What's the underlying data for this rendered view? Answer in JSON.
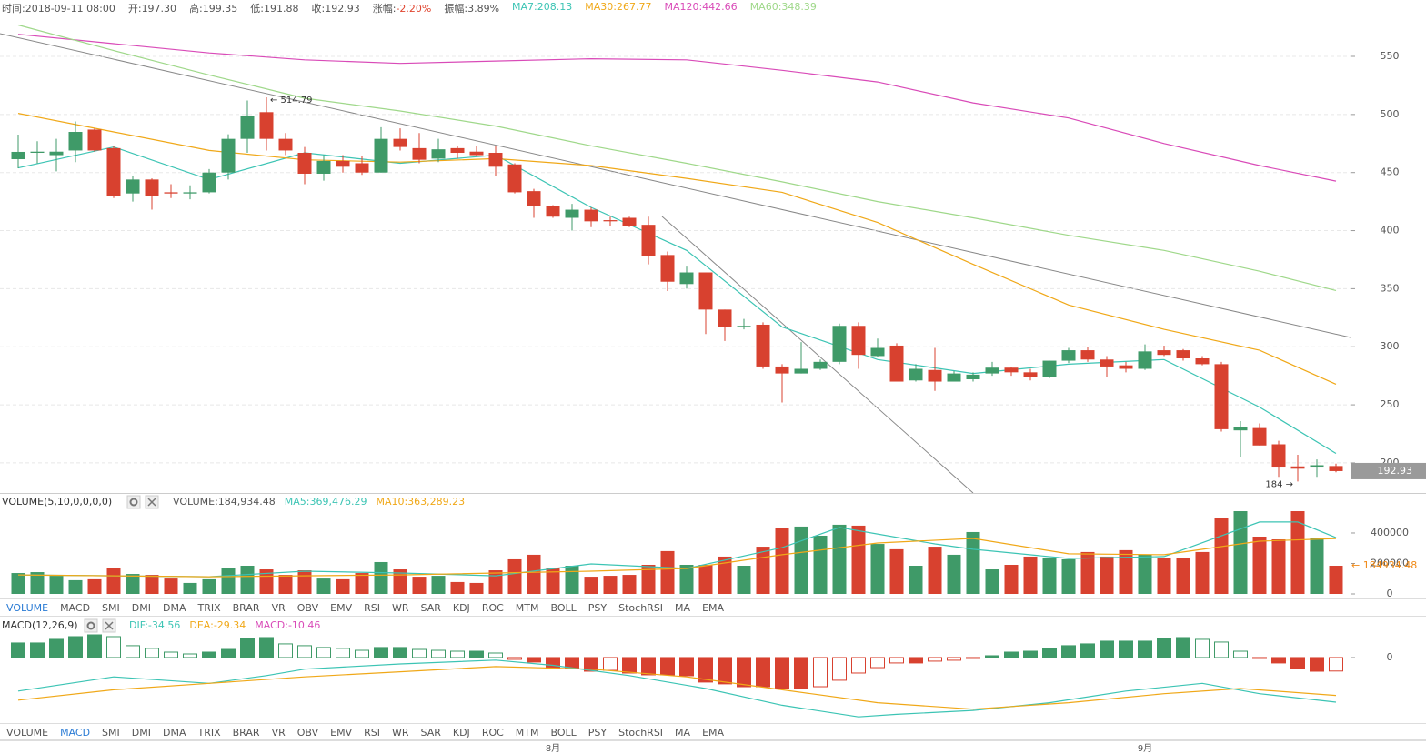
{
  "header": {
    "items": [
      {
        "label": "时间:",
        "value": "2018-09-11 08:00",
        "color": "#555555"
      },
      {
        "label": "开:",
        "value": "197.30",
        "color": "#555555"
      },
      {
        "label": "高:",
        "value": "199.35",
        "color": "#555555"
      },
      {
        "label": "低:",
        "value": "191.88",
        "color": "#555555"
      },
      {
        "label": "收:",
        "value": "192.93",
        "color": "#555555"
      },
      {
        "label": "涨幅:",
        "value": "-2.20%",
        "color": "#e0452f"
      },
      {
        "label": "振幅:",
        "value": "3.89%",
        "color": "#555555"
      }
    ]
  },
  "tabs": [
    {
      "items": [
        "VOLUME",
        "MACD",
        "SMI",
        "DMI",
        "DMA",
        "TRIX",
        "BRAR",
        "VR",
        "OBV",
        "EMV",
        "RSI",
        "WR",
        "SAR",
        "KDJ",
        "ROC",
        "MTM",
        "BOLL",
        "PSY",
        "StochRSI",
        "MA",
        "EMA"
      ],
      "active": 0
    },
    {
      "items": [
        "VOLUME",
        "MACD",
        "SMI",
        "DMI",
        "DMA",
        "TRIX",
        "BRAR",
        "VR",
        "OBV",
        "EMV",
        "RSI",
        "WR",
        "SAR",
        "KDJ",
        "ROC",
        "MTM",
        "BOLL",
        "PSY",
        "StochRSI",
        "MA",
        "EMA"
      ],
      "active": 1
    }
  ],
  "chart_data": [
    {
      "type": "candlestick",
      "categories": [
        null,
        null,
        null,
        null,
        null,
        null,
        null,
        null,
        null,
        null,
        null,
        null,
        null,
        null,
        null,
        null,
        null,
        null,
        null,
        null,
        null,
        null,
        null,
        null,
        null,
        null,
        null,
        null,
        "8月",
        null,
        null,
        null,
        null,
        null,
        null,
        null,
        null,
        null,
        null,
        null,
        null,
        null,
        null,
        null,
        null,
        null,
        null,
        null,
        null,
        null,
        null,
        null,
        null,
        null,
        null,
        null,
        null,
        null,
        null,
        "9月",
        null,
        null,
        null,
        null,
        null,
        null,
        null,
        null,
        null,
        null
      ],
      "open": [
        461.5,
        467,
        465,
        469,
        487,
        471,
        432,
        444,
        433,
        432,
        433,
        450,
        479,
        502,
        479,
        467,
        449,
        460,
        458,
        450,
        479,
        471,
        462,
        471,
        468,
        467,
        457,
        434,
        421,
        411,
        418,
        409,
        411,
        405,
        379,
        354,
        364,
        332,
        318,
        319,
        283,
        277,
        281,
        287,
        318,
        292,
        301,
        271,
        280,
        270,
        272,
        277,
        282,
        278,
        274,
        288,
        297,
        289,
        284,
        281,
        297,
        297,
        290,
        285,
        228,
        230,
        216,
        197,
        196,
        197.3
      ],
      "high": [
        482.7,
        477,
        479,
        494,
        488,
        473,
        447,
        445,
        440,
        439,
        453,
        483,
        512,
        514.79,
        484,
        472,
        465,
        465,
        464,
        489,
        488,
        484,
        479,
        473,
        473,
        473,
        458,
        436,
        422,
        423,
        420,
        412,
        412,
        412,
        382,
        369,
        364,
        332,
        324,
        321,
        285,
        304,
        289,
        320,
        321,
        307,
        303,
        285,
        299,
        279,
        278,
        287,
        283,
        281,
        288,
        299,
        300,
        292,
        287,
        302,
        301,
        298,
        292,
        287,
        236,
        234,
        219,
        207,
        203,
        199.35
      ],
      "low": [
        453.7,
        458,
        451,
        459,
        468,
        428,
        425,
        418,
        428,
        427,
        432,
        444,
        467,
        469,
        465,
        440,
        443,
        450,
        448,
        450,
        469,
        458,
        459,
        462,
        464,
        447,
        432,
        411,
        411,
        400,
        403,
        404,
        403,
        371,
        348,
        350,
        311,
        305,
        315,
        281,
        252,
        277,
        280,
        285,
        281,
        291,
        270,
        270,
        262,
        270,
        270,
        275,
        275,
        271,
        273,
        286,
        287,
        274,
        278,
        280,
        292,
        288,
        284,
        227,
        205,
        215,
        188,
        184,
        188,
        191.88
      ],
      "close": [
        467.8,
        468,
        468,
        485,
        469,
        430,
        444,
        430,
        432,
        433,
        450,
        479,
        499,
        479,
        469,
        449,
        460,
        455,
        450,
        479,
        472,
        461,
        470,
        467,
        465,
        455,
        433,
        421,
        412,
        418,
        408,
        408,
        404,
        378,
        356,
        364,
        332,
        317,
        318,
        283,
        277,
        281,
        287,
        318,
        293,
        299,
        270,
        281,
        270,
        277,
        276,
        282,
        278,
        274,
        288,
        297,
        289,
        283,
        281,
        296,
        293,
        290,
        285,
        229,
        231,
        215,
        196,
        195,
        198,
        192.93
      ],
      "up_color": "#3f9a68",
      "down_color": "#d8412f",
      "series": [
        {
          "name": "MA7:208.13",
          "color": "#3cc4b4",
          "x": [
            0,
            5,
            10,
            15,
            20,
            25,
            30,
            35,
            40,
            45,
            50,
            55,
            60,
            65,
            69
          ],
          "values": [
            454,
            472,
            444,
            467,
            458,
            465,
            420,
            383,
            317,
            289,
            277,
            285,
            289,
            248,
            208.13
          ]
        },
        {
          "name": "MA30:267.77",
          "color": "#f0a818",
          "x": [
            0,
            5,
            10,
            15,
            20,
            25,
            30,
            35,
            40,
            45,
            50,
            55,
            60,
            65,
            69
          ],
          "values": [
            501,
            485,
            469,
            461,
            459,
            462,
            456,
            445,
            433,
            407,
            371,
            336,
            315,
            297,
            267.77
          ]
        },
        {
          "name": "MA120:442.66",
          "color": "#d94bb8",
          "x": [
            0,
            5,
            10,
            15,
            20,
            25,
            30,
            35,
            40,
            45,
            50,
            55,
            60,
            65,
            69
          ],
          "values": [
            569,
            561,
            553,
            547,
            544,
            546,
            548,
            547,
            538,
            528,
            510,
            497,
            475,
            456,
            442.66
          ]
        },
        {
          "name": "MA60:348.39",
          "color": "#9fd88a",
          "x": [
            0,
            5,
            10,
            15,
            20,
            25,
            30,
            35,
            40,
            45,
            50,
            55,
            60,
            65,
            69
          ],
          "values": [
            577,
            555,
            534,
            514,
            503,
            490,
            473,
            458,
            442,
            425,
            411,
            396,
            383,
            365,
            348.39
          ]
        }
      ],
      "annotations": [
        {
          "label": "← 514.79",
          "x": 13,
          "y": 514.79
        },
        {
          "label": "184 →",
          "x": 67,
          "y": 184
        }
      ],
      "ylim": [
        174.1,
        582.9
      ],
      "yticks": [
        200,
        250,
        300,
        350,
        400,
        450,
        500,
        550
      ],
      "grid": true
    },
    {
      "type": "volume",
      "title": "VOLUME(5,10,0,0,0,0)",
      "value_name": "VOLUME:184,934.48",
      "value_color": "#555555",
      "values": [
        137000,
        143000,
        119000,
        90000,
        96000,
        173000,
        131000,
        125000,
        101000,
        72000,
        96000,
        173000,
        185000,
        161000,
        125000,
        155000,
        101000,
        96000,
        137000,
        209000,
        161000,
        113000,
        119000,
        78000,
        72000,
        155000,
        227000,
        257000,
        173000,
        185000,
        113000,
        119000,
        125000,
        191000,
        281000,
        191000,
        191000,
        245000,
        185000,
        310000,
        430000,
        442000,
        382000,
        454000,
        448000,
        328000,
        293000,
        185000,
        310000,
        257000,
        406000,
        161000,
        191000,
        245000,
        239000,
        227000,
        275000,
        245000,
        287000,
        257000,
        233000,
        233000,
        275000,
        501000,
        543000,
        376000,
        358000,
        543000,
        370000,
        184934.48
      ],
      "series": [
        {
          "name": "MA5:369,476.29",
          "color": "#3cc4b4",
          "x": [
            0,
            10,
            15,
            20,
            25,
            30,
            35,
            40,
            43,
            48,
            50,
            55,
            60,
            65,
            67,
            69
          ],
          "values": [
            125000,
            113000,
            149000,
            137000,
            119000,
            197000,
            167000,
            304000,
            436000,
            328000,
            293000,
            233000,
            245000,
            472000,
            472000,
            369476.29
          ]
        },
        {
          "name": "MA10:363,289.23",
          "color": "#f0a818",
          "x": [
            0,
            10,
            20,
            30,
            35,
            40,
            45,
            50,
            55,
            60,
            65,
            69
          ],
          "values": [
            125000,
            113000,
            125000,
            149000,
            167000,
            257000,
            334000,
            364000,
            263000,
            257000,
            346000,
            363289.23
          ]
        }
      ],
      "annotations": [
        {
          "label": "← 184934.48",
          "y": 184934.48,
          "color": "#f08a18"
        }
      ],
      "ylim": [
        0,
        555000
      ],
      "yticks": [
        0,
        200000,
        400000
      ]
    },
    {
      "type": "macd",
      "title": "MACD(12,26,9)",
      "value_name": "MACD:-10.46",
      "value_color": "#d94bb8",
      "values": [
        11.3,
        11.3,
        14.1,
        16.2,
        17.6,
        16.2,
        9.2,
        7.1,
        4.2,
        2.8,
        4.2,
        6.3,
        14.8,
        15.5,
        10.6,
        9.2,
        7.8,
        7.1,
        5.6,
        7.8,
        7.8,
        6.3,
        5.6,
        4.9,
        4.9,
        3.5,
        -1.4,
        -3.5,
        -8.5,
        -8.5,
        -10.6,
        -9.9,
        -12,
        -13.4,
        -13.4,
        -14.1,
        -19,
        -20.4,
        -22.6,
        -22.6,
        -24,
        -24,
        -22.6,
        -17.6,
        -12,
        -7.8,
        -4.2,
        -4.2,
        -2.8,
        -2.1,
        -0.7,
        1.4,
        4.2,
        4.9,
        7.1,
        9.2,
        10.6,
        12.7,
        12.7,
        12.7,
        14.8,
        15.5,
        14.1,
        12,
        4.9,
        -0.7,
        -4.2,
        -8.5,
        -10.6,
        -10.46
      ],
      "series": [
        {
          "name": "DIF:-34.56",
          "color": "#3cc4b4",
          "x": [
            0,
            5,
            10,
            13,
            15,
            20,
            25,
            28,
            32,
            36,
            40,
            44,
            46,
            50,
            54,
            58,
            62,
            65,
            69
          ],
          "values": [
            -26,
            -15,
            -20,
            -14,
            -9,
            -5,
            -2,
            -6,
            -14,
            -24,
            -37,
            -46,
            -44,
            -41,
            -35,
            -26,
            -20,
            -28,
            -34.56
          ]
        },
        {
          "name": "DEA:-29.34",
          "color": "#f0a818",
          "x": [
            0,
            5,
            10,
            15,
            20,
            25,
            30,
            35,
            40,
            45,
            50,
            55,
            60,
            64,
            69
          ],
          "values": [
            -33,
            -25,
            -20,
            -15,
            -11,
            -7,
            -9,
            -15,
            -25,
            -35,
            -40,
            -35,
            -28,
            -24,
            -29.34
          ]
        }
      ],
      "ylim": [
        -50.8,
        17.6
      ],
      "yticks": [
        0
      ]
    }
  ]
}
